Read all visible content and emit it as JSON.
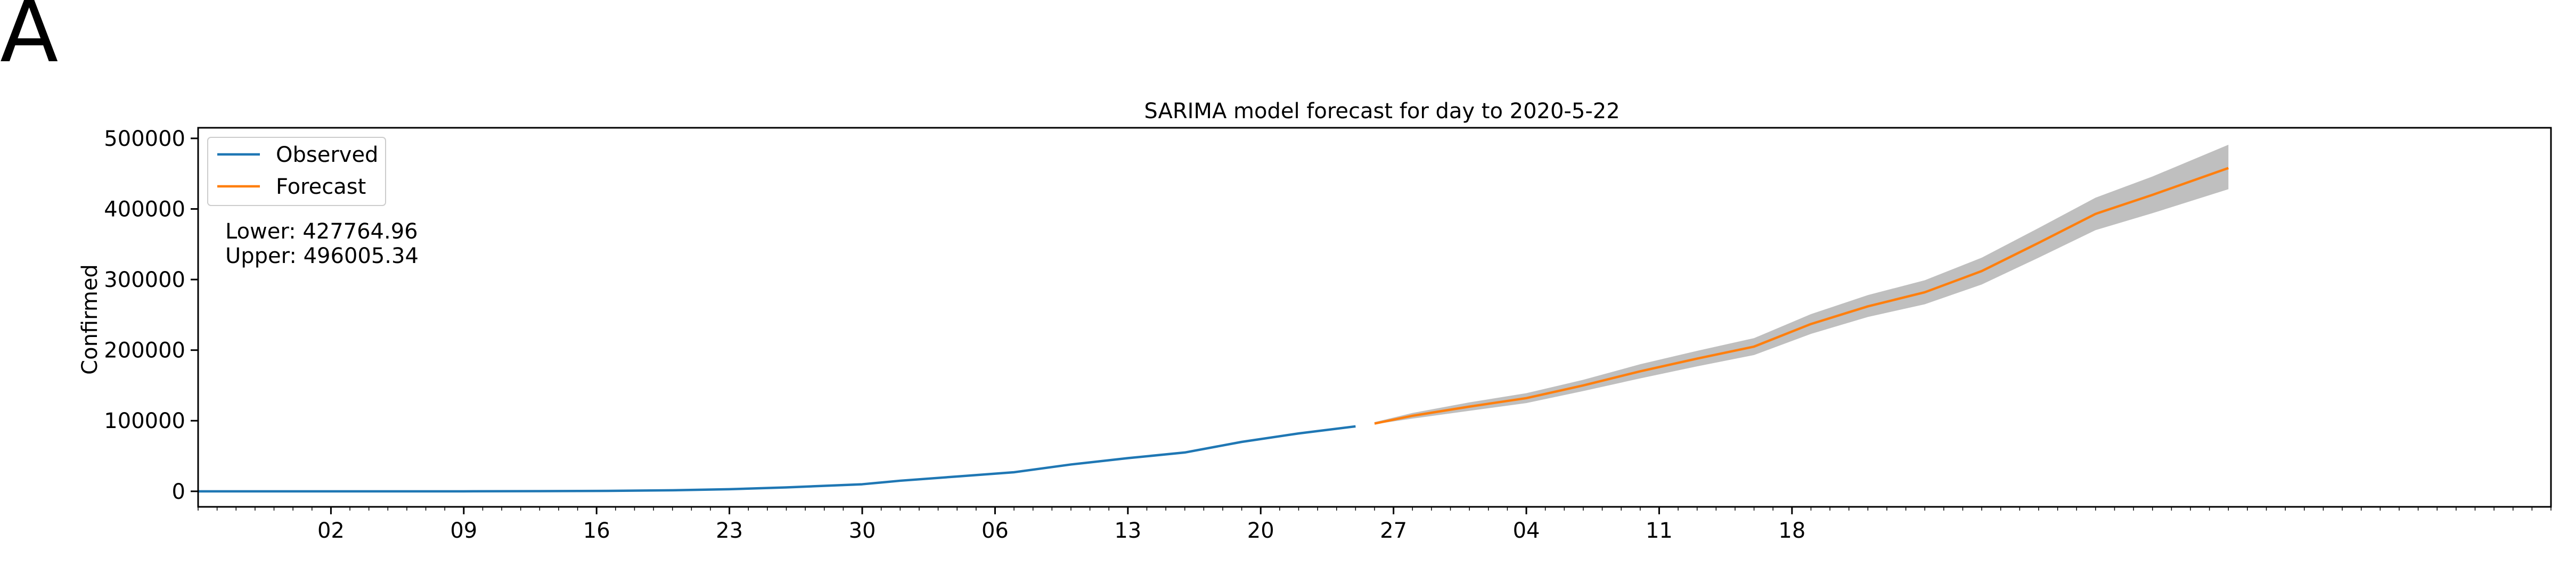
{
  "panel_label": "A",
  "chart_data": {
    "type": "line",
    "title": "SARIMA model forecast for day to 2020-5-22",
    "xlabel": "",
    "ylabel": "Confirmed",
    "x_range": [
      "2020-01-26",
      "2020-05-29"
    ],
    "x_ticks": [
      {
        "date": "2020-02-02",
        "label": "02"
      },
      {
        "date": "2020-02-09",
        "label": "09"
      },
      {
        "date": "2020-02-16",
        "label": "16"
      },
      {
        "date": "2020-02-23",
        "label": "23"
      },
      {
        "date": "2020-03-01",
        "label": "30"
      },
      {
        "date": "2020-03-08",
        "label": "06"
      },
      {
        "date": "2020-03-15",
        "label": "13"
      },
      {
        "date": "2020-03-22",
        "label": "20"
      },
      {
        "date": "2020-03-29",
        "label": "27"
      },
      {
        "date": "2020-04-05",
        "label": "04"
      },
      {
        "date": "2020-04-12",
        "label": "11"
      },
      {
        "date": "2020-04-19",
        "label": "18"
      }
    ],
    "ylim": [
      -22000,
      515000
    ],
    "y_ticks": [
      0,
      100000,
      200000,
      300000,
      400000,
      500000
    ],
    "grid": false,
    "legend_position": "top-left",
    "annotation": [
      "Lower: 427764.96",
      "Upper: 496005.34"
    ],
    "series": [
      {
        "name": "Observed",
        "color": "#1f77b4",
        "points": [
          [
            "2020-01-26",
            0
          ],
          [
            "2020-02-02",
            0
          ],
          [
            "2020-02-09",
            0
          ],
          [
            "2020-02-16",
            500
          ],
          [
            "2020-02-20",
            1500
          ],
          [
            "2020-02-23",
            3000
          ],
          [
            "2020-02-26",
            5500
          ],
          [
            "2020-03-01",
            10000
          ],
          [
            "2020-03-03",
            15000
          ],
          [
            "2020-03-06",
            21000
          ],
          [
            "2020-03-09",
            27000
          ],
          [
            "2020-03-12",
            38000
          ],
          [
            "2020-03-15",
            47000
          ],
          [
            "2020-03-18",
            55000
          ],
          [
            "2020-03-21",
            70000
          ],
          [
            "2020-03-24",
            82000
          ],
          [
            "2020-03-27",
            92000
          ]
        ]
      },
      {
        "name": "Forecast",
        "color": "#ff7f0e",
        "ci_color": "#bfbfbf",
        "points": [
          [
            "2020-03-28",
            96000,
            95000,
            98000
          ],
          [
            "2020-03-30",
            107000,
            103000,
            111000
          ],
          [
            "2020-04-02",
            120000,
            114000,
            126000
          ],
          [
            "2020-04-05",
            132000,
            125000,
            139000
          ],
          [
            "2020-04-08",
            150000,
            142000,
            158000
          ],
          [
            "2020-04-11",
            170000,
            160000,
            180000
          ],
          [
            "2020-04-14",
            188000,
            177000,
            199000
          ],
          [
            "2020-04-17",
            205000,
            193000,
            217000
          ],
          [
            "2020-04-20",
            237000,
            223000,
            251000
          ],
          [
            "2020-04-23",
            262000,
            247000,
            278000
          ],
          [
            "2020-04-26",
            282000,
            265000,
            299000
          ],
          [
            "2020-04-29",
            312000,
            293000,
            331000
          ],
          [
            "2020-05-02",
            352000,
            331000,
            373000
          ],
          [
            "2020-05-05",
            393000,
            370000,
            416000
          ],
          [
            "2020-05-08",
            420000,
            394000,
            446000
          ],
          [
            "2020-05-12",
            458000,
            428000,
            491000
          ]
        ]
      }
    ]
  }
}
